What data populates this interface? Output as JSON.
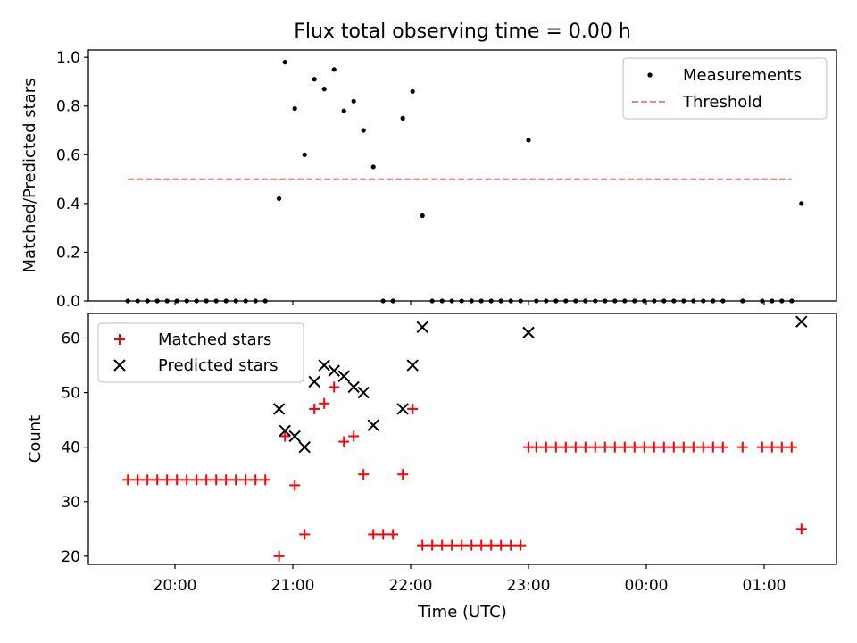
{
  "chart_data": [
    {
      "type": "scatter",
      "title": "Flux total observing time = 0.00 h",
      "xlabel": "",
      "ylabel": "Matched/Predicted stars",
      "ylim": [
        0,
        1.03
      ],
      "yticks": [
        "0.0",
        "0.2",
        "0.4",
        "0.6",
        "0.8",
        "1.0"
      ],
      "legend_position": "top-right",
      "series": [
        {
          "name": "Measurements",
          "color": "#000000",
          "marker": "dot",
          "x": [
            "19:36",
            "19:41",
            "19:46",
            "19:51",
            "19:56",
            "20:01",
            "20:06",
            "20:11",
            "20:16",
            "20:21",
            "20:26",
            "20:31",
            "20:36",
            "20:41",
            "20:46",
            "20:53",
            "20:56",
            "21:01",
            "21:06",
            "21:11",
            "21:16",
            "21:21",
            "21:26",
            "21:31",
            "21:36",
            "21:41",
            "21:46",
            "21:51",
            "21:56",
            "22:01",
            "22:06",
            "22:11",
            "22:16",
            "22:21",
            "22:26",
            "22:31",
            "22:36",
            "22:41",
            "22:46",
            "22:51",
            "22:56",
            "23:00",
            "23:04",
            "23:09",
            "23:14",
            "23:19",
            "23:24",
            "23:29",
            "23:34",
            "23:39",
            "23:44",
            "23:49",
            "23:54",
            "23:59",
            "00:04",
            "00:09",
            "00:14",
            "00:19",
            "00:24",
            "00:29",
            "00:34",
            "00:39",
            "00:49",
            "00:59",
            "01:04",
            "01:09",
            "01:14",
            "01:19"
          ],
          "y": [
            0,
            0,
            0,
            0,
            0,
            0,
            0,
            0,
            0,
            0,
            0,
            0,
            0,
            0,
            0,
            0.42,
            0.98,
            0.79,
            0.6,
            0.91,
            0.87,
            0.95,
            0.78,
            0.82,
            0.7,
            0.55,
            0,
            0,
            0.75,
            0.86,
            0.35,
            0,
            0,
            0,
            0,
            0,
            0,
            0,
            0,
            0,
            0,
            0.66,
            0,
            0,
            0,
            0,
            0,
            0,
            0,
            0,
            0,
            0,
            0,
            0,
            0,
            0,
            0,
            0,
            0,
            0,
            0,
            0,
            0,
            0,
            0,
            0,
            0,
            0.4
          ]
        },
        {
          "name": "Threshold",
          "color": "#ff8080",
          "style": "dashed",
          "x": [
            "19:36",
            "01:14"
          ],
          "y": [
            0.5,
            0.5
          ]
        }
      ]
    },
    {
      "type": "scatter",
      "title": "",
      "xlabel": "Time (UTC)",
      "ylabel": "Count",
      "ylim": [
        18.5,
        64.5
      ],
      "yticks": [
        "20",
        "30",
        "40",
        "50",
        "60"
      ],
      "xticks": [
        "20:00",
        "21:00",
        "22:00",
        "23:00",
        "00:00",
        "01:00"
      ],
      "legend_position": "top-left",
      "series": [
        {
          "name": "Matched stars",
          "color": "#ff0000",
          "marker": "plus",
          "x": [
            "19:36",
            "19:41",
            "19:46",
            "19:51",
            "19:56",
            "20:01",
            "20:06",
            "20:11",
            "20:16",
            "20:21",
            "20:26",
            "20:31",
            "20:36",
            "20:41",
            "20:46",
            "20:53",
            "20:56",
            "21:01",
            "21:06",
            "21:11",
            "21:16",
            "21:21",
            "21:26",
            "21:31",
            "21:36",
            "21:41",
            "21:46",
            "21:51",
            "21:56",
            "22:01",
            "22:06",
            "22:11",
            "22:16",
            "22:21",
            "22:26",
            "22:31",
            "22:36",
            "22:41",
            "22:46",
            "22:51",
            "22:56",
            "23:00",
            "23:04",
            "23:09",
            "23:14",
            "23:19",
            "23:24",
            "23:29",
            "23:34",
            "23:39",
            "23:44",
            "23:49",
            "23:54",
            "23:59",
            "00:04",
            "00:09",
            "00:14",
            "00:19",
            "00:24",
            "00:29",
            "00:34",
            "00:39",
            "00:49",
            "00:59",
            "01:04",
            "01:09",
            "01:14",
            "01:19"
          ],
          "y": [
            34,
            34,
            34,
            34,
            34,
            34,
            34,
            34,
            34,
            34,
            34,
            34,
            34,
            34,
            34,
            20,
            42,
            33,
            24,
            47,
            48,
            51,
            41,
            42,
            35,
            24,
            24,
            24,
            35,
            47,
            22,
            22,
            22,
            22,
            22,
            22,
            22,
            22,
            22,
            22,
            22,
            40,
            40,
            40,
            40,
            40,
            40,
            40,
            40,
            40,
            40,
            40,
            40,
            40,
            40,
            40,
            40,
            40,
            40,
            40,
            40,
            40,
            40,
            40,
            40,
            40,
            40,
            25
          ]
        },
        {
          "name": "Predicted stars",
          "color": "#000000",
          "marker": "x",
          "x": [
            "20:53",
            "20:56",
            "21:01",
            "21:06",
            "21:11",
            "21:16",
            "21:21",
            "21:26",
            "21:31",
            "21:36",
            "21:41",
            "21:56",
            "22:01",
            "22:06",
            "23:00",
            "01:19"
          ],
          "y": [
            47,
            43,
            42,
            40,
            52,
            55,
            54,
            53,
            51,
            50,
            44,
            47,
            55,
            62,
            61,
            63
          ]
        }
      ]
    }
  ]
}
